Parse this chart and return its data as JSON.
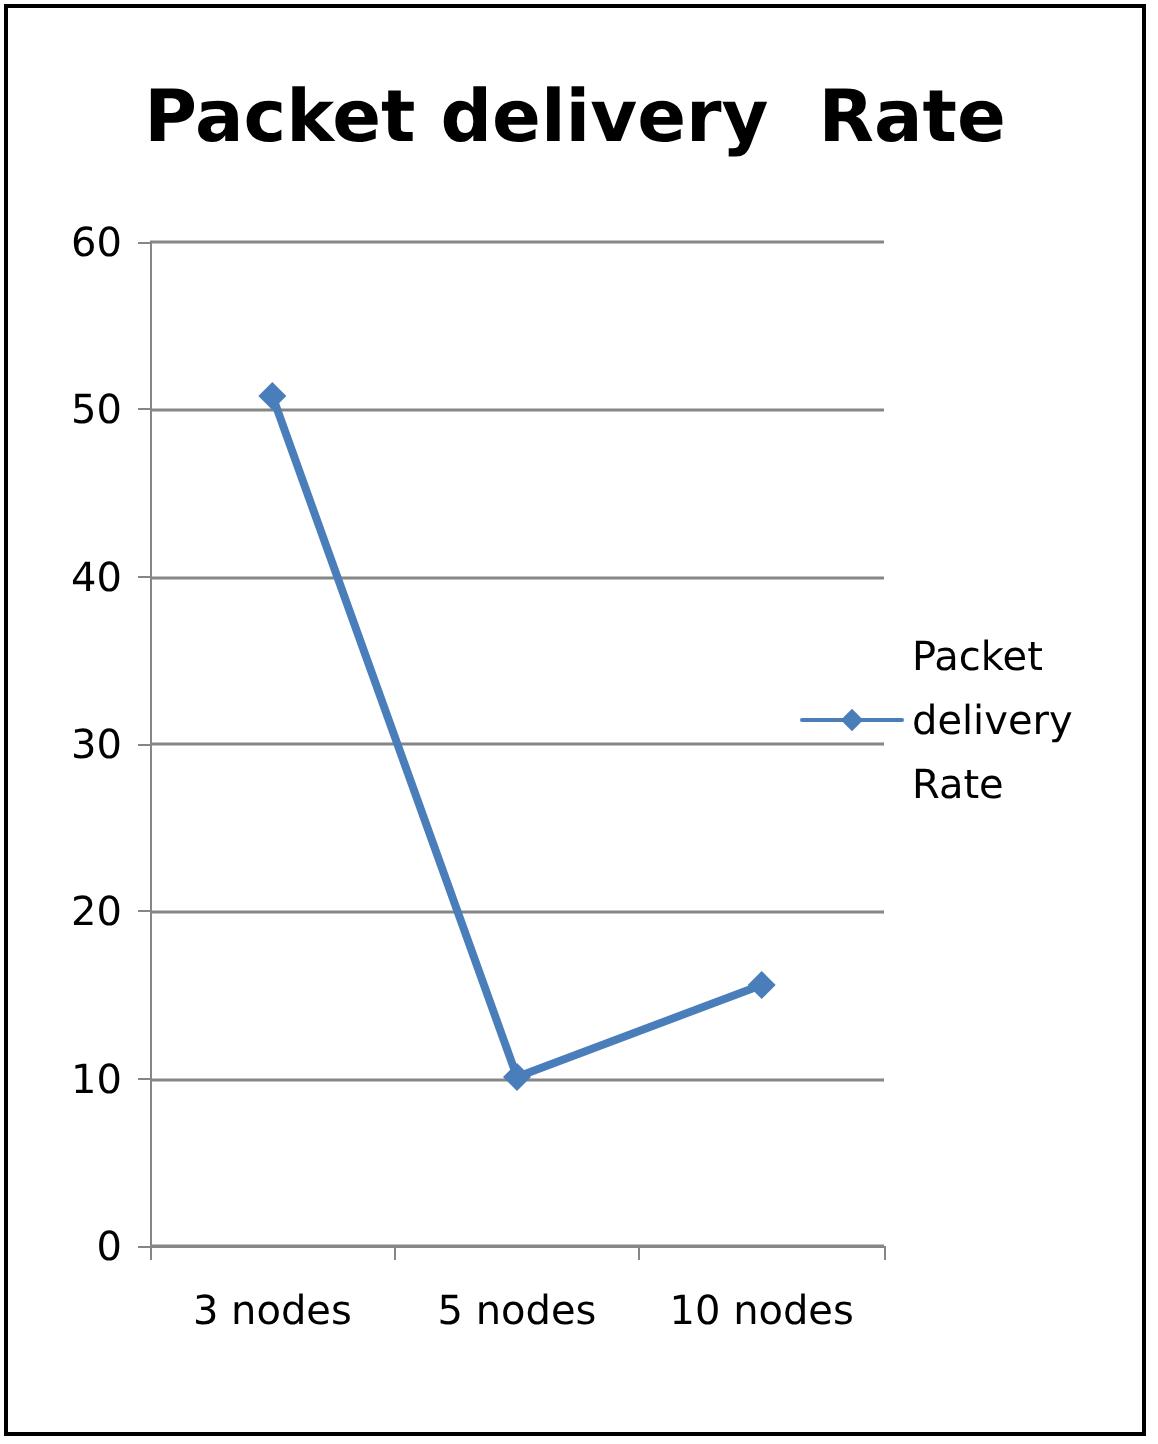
{
  "chart_data": {
    "type": "line",
    "title": "Packet delivery  Rate",
    "categories": [
      "3 nodes",
      "5 nodes",
      "10 nodes"
    ],
    "series": [
      {
        "name": "Packet delivery Rate",
        "color": "#4a7ebb",
        "values": [
          50.8,
          10.1,
          15.6
        ]
      }
    ],
    "ylim": [
      0,
      60
    ],
    "yticks": [
      0,
      10,
      20,
      30,
      40,
      50,
      60
    ],
    "grid": "y",
    "legend": "right",
    "marker": "diamond",
    "line_style": "solid"
  }
}
